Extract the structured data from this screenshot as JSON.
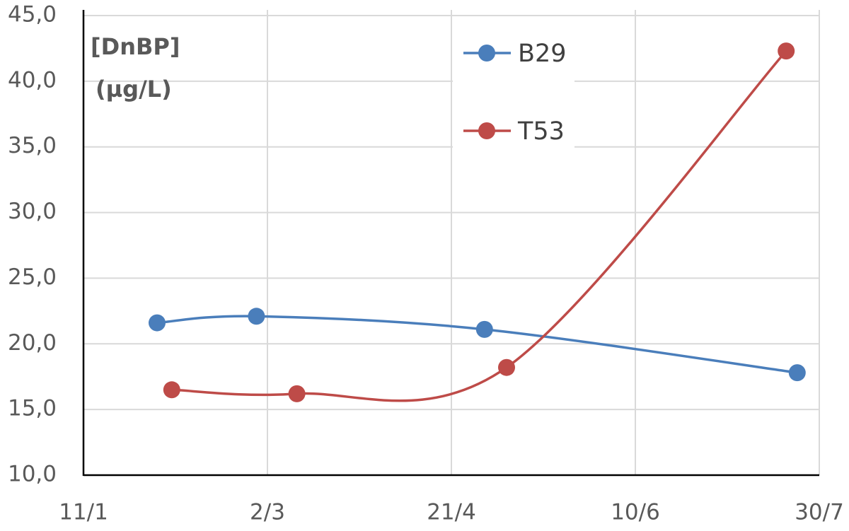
{
  "chart_data": {
    "type": "line",
    "ylabel": [
      "[DnBP]",
      "(µg/L)"
    ],
    "series": [
      {
        "name": "B29",
        "color": "#4a7ebb",
        "x": [
          31,
          58,
          120,
          205
        ],
        "values": [
          21.6,
          22.1,
          21.1,
          17.8
        ]
      },
      {
        "name": "T53",
        "color": "#be4b48",
        "x": [
          35,
          69,
          126,
          202
        ],
        "values": [
          16.5,
          16.2,
          18.2,
          42.3
        ]
      }
    ],
    "xlim": [
      11,
      211
    ],
    "xticks": [
      {
        "value": 11,
        "label": "11/1"
      },
      {
        "value": 61,
        "label": "2/3"
      },
      {
        "value": 111,
        "label": "21/4"
      },
      {
        "value": 161,
        "label": "10/6"
      },
      {
        "value": 211,
        "label": "30/7"
      }
    ],
    "ylim": [
      10,
      45
    ],
    "yticks": [
      {
        "value": 10,
        "label": "10,0"
      },
      {
        "value": 15,
        "label": "15,0"
      },
      {
        "value": 20,
        "label": "20,0"
      },
      {
        "value": 25,
        "label": "25,0"
      },
      {
        "value": 30,
        "label": "30,0"
      },
      {
        "value": 35,
        "label": "35,0"
      },
      {
        "value": 40,
        "label": "40,0"
      },
      {
        "value": 45,
        "label": "45,0"
      }
    ],
    "grid": true,
    "legend": "top-right",
    "smooth": true
  }
}
